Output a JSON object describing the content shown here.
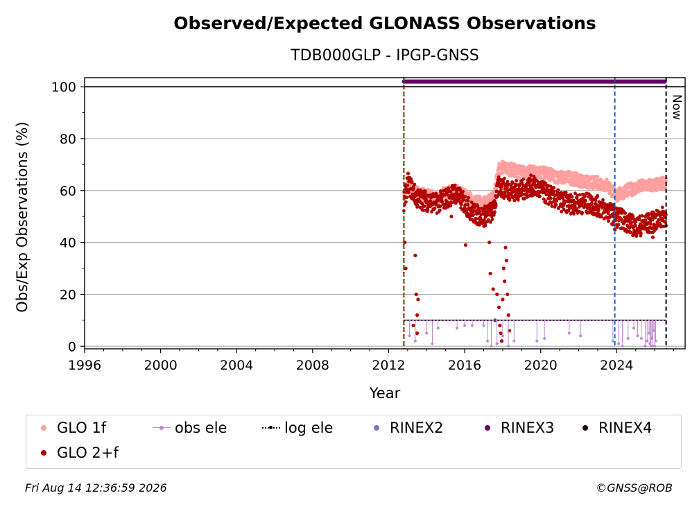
{
  "chart_data": {
    "type": "scatter",
    "title": "Observed/Expected GLONASS Observations",
    "subtitle": "TDB000GLP - IPGP-GNSS",
    "xlabel": "Year",
    "ylabel": "Obs/Exp Observations (%)",
    "xlim": [
      1996,
      2027.6
    ],
    "ylim": [
      -1,
      103.5
    ],
    "x_ticks": [
      "1996",
      "2000",
      "2004",
      "2008",
      "2012",
      "2016",
      "2020",
      "2024"
    ],
    "y_ticks": [
      "0",
      "20",
      "40",
      "60",
      "80",
      "100"
    ],
    "grid": "horizontal",
    "legend_placement": "below",
    "series": [
      {
        "name": "GLO 1f",
        "color": "#ff9f9f",
        "marker": "dot",
        "x": [
          2012.8,
          2013.0,
          2013.5,
          2014.0,
          2014.5,
          2015.0,
          2015.5,
          2016.0,
          2016.5,
          2017.0,
          2017.5,
          2017.8,
          2018.0,
          2018.5,
          2019.0,
          2019.5,
          2020.0,
          2020.5,
          2021.0,
          2021.5,
          2022.0,
          2022.5,
          2023.0,
          2023.5,
          2024.0,
          2024.5,
          2025.0,
          2025.5,
          2026.0,
          2026.5
        ],
        "y": [
          58,
          62,
          59,
          58,
          57,
          59,
          60,
          58,
          56,
          55,
          57,
          68,
          69,
          68,
          67,
          67,
          67,
          66,
          65,
          65,
          64,
          63,
          63,
          62,
          58,
          60,
          61,
          62,
          62,
          63
        ]
      },
      {
        "name": "GLO 2+f",
        "color": "#b30000",
        "marker": "dot",
        "x": [
          2012.8,
          2013.0,
          2013.5,
          2014.0,
          2014.5,
          2015.0,
          2015.5,
          2016.0,
          2016.5,
          2017.0,
          2017.5,
          2017.8,
          2018.0,
          2018.5,
          2019.0,
          2019.5,
          2020.0,
          2020.5,
          2021.0,
          2021.5,
          2022.0,
          2022.5,
          2023.0,
          2023.5,
          2024.0,
          2024.5,
          2025.0,
          2025.5,
          2026.0,
          2026.5
        ],
        "y": [
          55,
          63,
          57,
          56,
          55,
          57,
          59,
          55,
          51,
          50,
          52,
          62,
          61,
          60,
          60,
          62,
          60,
          58,
          56,
          55,
          55,
          55,
          54,
          52,
          50,
          48,
          46,
          47,
          48,
          50
        ]
      },
      {
        "name": "obs ele",
        "color": "#c08ad0",
        "marker": "dot-line",
        "y_level": 10
      },
      {
        "name": "log ele",
        "color": "#000000",
        "marker": "dotted-line",
        "y_level": 10
      },
      {
        "name": "RINEX2",
        "color": "#8070c0",
        "marker": "dot"
      },
      {
        "name": "RINEX3",
        "color": "#660066",
        "marker": "dot",
        "y_level": 102,
        "spans": [
          [
            2012.8,
            2023.9
          ],
          [
            2023.9,
            2026.6
          ]
        ]
      },
      {
        "name": "RINEX4",
        "color": "#220011",
        "marker": "dot"
      }
    ],
    "event_lines": [
      {
        "x": 2012.8,
        "color": "#008000",
        "style": "dashed"
      },
      {
        "x": 2012.8,
        "color": "#b30000",
        "style": "dotted"
      },
      {
        "x": 2023.9,
        "color": "#1060b0",
        "style": "dashed"
      },
      {
        "x": 2026.6,
        "color": "#000000",
        "style": "dashed",
        "label": "Now"
      }
    ]
  },
  "legend": [
    {
      "label": "GLO 1f",
      "color": "#ff9f9f",
      "kind": "dot"
    },
    {
      "label": "obs ele",
      "color": "#c08ad0",
      "kind": "dot-line"
    },
    {
      "label": "log ele",
      "color": "#000000",
      "kind": "dotted-line"
    },
    {
      "label": "RINEX2",
      "color": "#8070c0",
      "kind": "dot"
    },
    {
      "label": "RINEX3",
      "color": "#660066",
      "kind": "dot"
    },
    {
      "label": "RINEX4",
      "color": "#220011",
      "kind": "dot"
    },
    {
      "label": "GLO 2+f",
      "color": "#b30000",
      "kind": "dot"
    }
  ],
  "footer": {
    "timestamp": "Fri Aug 14 12:36:59 2026",
    "credit": "©GNSS@ROB"
  }
}
